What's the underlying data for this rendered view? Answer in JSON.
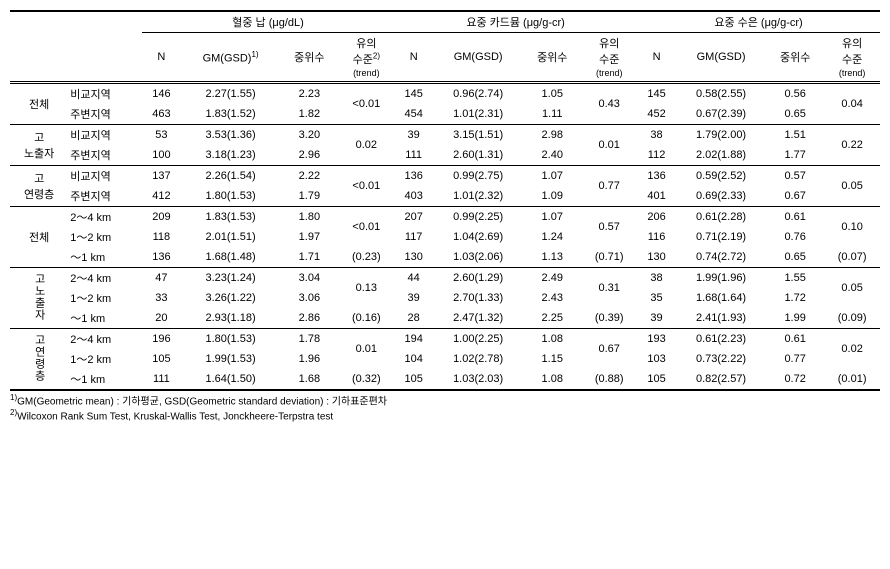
{
  "headers": {
    "group1": "혈중 납 (μg/dL)",
    "group2": "요중 카드뮴 (μg/g-cr)",
    "group3": "요중 수은 (μg/g-cr)",
    "N": "N",
    "GM": "GM(GSD)",
    "GM1": "GM(GSD)",
    "sup1": "1)",
    "median": "중위수",
    "sig": "유의",
    "sig2": "수준",
    "sup2": "2)",
    "trend": "(trend)"
  },
  "sectionA": {
    "rows": [
      {
        "cat": "전체",
        "sub": "비교지역",
        "a_n": "146",
        "a_gm": "2.27(1.55)",
        "a_med": "2.23",
        "a_sig": "<0.01",
        "b_n": "145",
        "b_gm": "0.96(2.74)",
        "b_med": "1.05",
        "b_sig": "0.43",
        "c_n": "145",
        "c_gm": "0.58(2.55)",
        "c_med": "0.56",
        "c_sig": "0.04"
      },
      {
        "cat": "",
        "sub": "주변지역",
        "a_n": "463",
        "a_gm": "1.83(1.52)",
        "a_med": "1.82",
        "b_n": "454",
        "b_gm": "1.01(2.31)",
        "b_med": "1.11",
        "c_n": "452",
        "c_gm": "0.67(2.39)",
        "c_med": "0.65"
      },
      {
        "cat": "고",
        "catline2": "노출자",
        "sub": "비교지역",
        "a_n": "53",
        "a_gm": "3.53(1.36)",
        "a_med": "3.20",
        "a_sig": "0.02",
        "b_n": "39",
        "b_gm": "3.15(1.51)",
        "b_med": "2.98",
        "b_sig": "0.01",
        "c_n": "38",
        "c_gm": "1.79(2.00)",
        "c_med": "1.51",
        "c_sig": "0.22"
      },
      {
        "cat": "",
        "sub": "주변지역",
        "a_n": "100",
        "a_gm": "3.18(1.23)",
        "a_med": "2.96",
        "b_n": "111",
        "b_gm": "2.60(1.31)",
        "b_med": "2.40",
        "c_n": "112",
        "c_gm": "2.02(1.88)",
        "c_med": "1.77"
      },
      {
        "cat": "고",
        "catline2": "연령층",
        "sub": "비교지역",
        "a_n": "137",
        "a_gm": "2.26(1.54)",
        "a_med": "2.22",
        "a_sig": "<0.01",
        "b_n": "136",
        "b_gm": "0.99(2.75)",
        "b_med": "1.07",
        "b_sig": "0.77",
        "c_n": "136",
        "c_gm": "0.59(2.52)",
        "c_med": "0.57",
        "c_sig": "0.05"
      },
      {
        "cat": "",
        "sub": "주변지역",
        "a_n": "412",
        "a_gm": "1.80(1.53)",
        "a_med": "1.79",
        "b_n": "403",
        "b_gm": "1.01(2.32)",
        "b_med": "1.09",
        "c_n": "401",
        "c_gm": "0.69(2.33)",
        "c_med": "0.67"
      }
    ]
  },
  "sectionB": {
    "rows": [
      {
        "cat": "전체",
        "sub": "2～4 km",
        "a_n": "209",
        "a_gm": "1.83(1.53)",
        "a_med": "1.80",
        "a_sig": "<0.01",
        "b_n": "207",
        "b_gm": "0.99(2.25)",
        "b_med": "1.07",
        "b_sig": "0.57",
        "c_n": "206",
        "c_gm": "0.61(2.28)",
        "c_med": "0.61",
        "c_sig": "0.10"
      },
      {
        "cat": "",
        "sub": "1～2 km",
        "a_n": "118",
        "a_gm": "2.01(1.51)",
        "a_med": "1.97",
        "a_sig": "(0.23)",
        "b_n": "117",
        "b_gm": "1.04(2.69)",
        "b_med": "1.24",
        "b_sig": "(0.71)",
        "c_n": "116",
        "c_gm": "0.71(2.19)",
        "c_med": "0.76",
        "c_sig": "(0.07)"
      },
      {
        "cat": "",
        "sub": "～1 km",
        "a_n": "136",
        "a_gm": "1.68(1.48)",
        "a_med": "1.71",
        "b_n": "130",
        "b_gm": "1.03(2.06)",
        "b_med": "1.13",
        "c_n": "130",
        "c_gm": "0.74(2.72)",
        "c_med": "0.65"
      },
      {
        "cat": "고노출자",
        "sub": "2～4 km",
        "a_n": "47",
        "a_gm": "3.23(1.24)",
        "a_med": "3.04",
        "a_sig": "0.13",
        "b_n": "44",
        "b_gm": "2.60(1.29)",
        "b_med": "2.49",
        "b_sig": "0.31",
        "c_n": "38",
        "c_gm": "1.99(1.96)",
        "c_med": "1.55",
        "c_sig": "0.05"
      },
      {
        "cat": "",
        "sub": "1～2 km",
        "a_n": "33",
        "a_gm": "3.26(1.22)",
        "a_med": "3.06",
        "a_sig": "(0.16)",
        "b_n": "39",
        "b_gm": "2.70(1.33)",
        "b_med": "2.43",
        "b_sig": "(0.39)",
        "c_n": "35",
        "c_gm": "1.68(1.64)",
        "c_med": "1.72",
        "c_sig": "(0.09)"
      },
      {
        "cat": "",
        "sub": "～1 km",
        "a_n": "20",
        "a_gm": "2.93(1.18)",
        "a_med": "2.86",
        "b_n": "28",
        "b_gm": "2.47(1.32)",
        "b_med": "2.25",
        "c_n": "39",
        "c_gm": "2.41(1.93)",
        "c_med": "1.99"
      },
      {
        "cat": "고연령층",
        "sub": "2～4 km",
        "a_n": "196",
        "a_gm": "1.80(1.53)",
        "a_med": "1.78",
        "a_sig": "0.01",
        "b_n": "194",
        "b_gm": "1.00(2.25)",
        "b_med": "1.08",
        "b_sig": "0.67",
        "c_n": "193",
        "c_gm": "0.61(2.23)",
        "c_med": "0.61",
        "c_sig": "0.02"
      },
      {
        "cat": "",
        "sub": "1～2 km",
        "a_n": "105",
        "a_gm": "1.99(1.53)",
        "a_med": "1.96",
        "a_sig": "(0.32)",
        "b_n": "104",
        "b_gm": "1.02(2.78)",
        "b_med": "1.15",
        "b_sig": "(0.88)",
        "c_n": "103",
        "c_gm": "0.73(2.22)",
        "c_med": "0.77",
        "c_sig": "(0.01)"
      },
      {
        "cat": "",
        "sub": "～1 km",
        "a_n": "111",
        "a_gm": "1.64(1.50)",
        "a_med": "1.68",
        "b_n": "105",
        "b_gm": "1.03(2.03)",
        "b_med": "1.08",
        "c_n": "105",
        "c_gm": "0.82(2.57)",
        "c_med": "0.72"
      }
    ]
  },
  "footnotes": {
    "f1pre": "1)",
    "f1": "GM(Geometric mean) : 기하평균, GSD(Geometric standard deviation) : 기하표준편차",
    "f2pre": "2)",
    "f2": "Wilcoxon Rank Sum Test, Kruskal-Wallis Test, Jonckheere-Terpstra test"
  }
}
